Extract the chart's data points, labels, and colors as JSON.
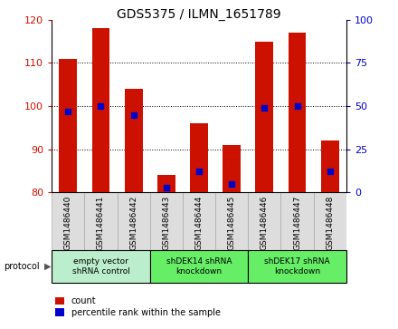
{
  "title": "GDS5375 / ILMN_1651789",
  "samples": [
    "GSM1486440",
    "GSM1486441",
    "GSM1486442",
    "GSM1486443",
    "GSM1486444",
    "GSM1486445",
    "GSM1486446",
    "GSM1486447",
    "GSM1486448"
  ],
  "counts": [
    111,
    118,
    104,
    84,
    96,
    91,
    115,
    117,
    92
  ],
  "percentile_ranks": [
    47,
    50,
    45,
    3,
    12,
    5,
    49,
    50,
    12
  ],
  "ylim": [
    80,
    120
  ],
  "y2lim": [
    0,
    100
  ],
  "yticks": [
    80,
    90,
    100,
    110,
    120
  ],
  "y2ticks": [
    0,
    25,
    50,
    75,
    100
  ],
  "bar_color": "#cc1100",
  "dot_color": "#0000cc",
  "group_spans": [
    [
      0,
      3,
      "empty vector\nshRNA control",
      "#bbeecc"
    ],
    [
      3,
      6,
      "shDEK14 shRNA\nknockdown",
      "#66ee66"
    ],
    [
      6,
      9,
      "shDEK17 shRNA\nknockdown",
      "#66ee66"
    ]
  ],
  "protocol_label": "protocol",
  "legend_count_label": "count",
  "legend_percentile_label": "percentile rank within the sample",
  "bar_width": 0.55,
  "cell_color": "#dddddd",
  "cell_edge_color": "#aaaaaa"
}
